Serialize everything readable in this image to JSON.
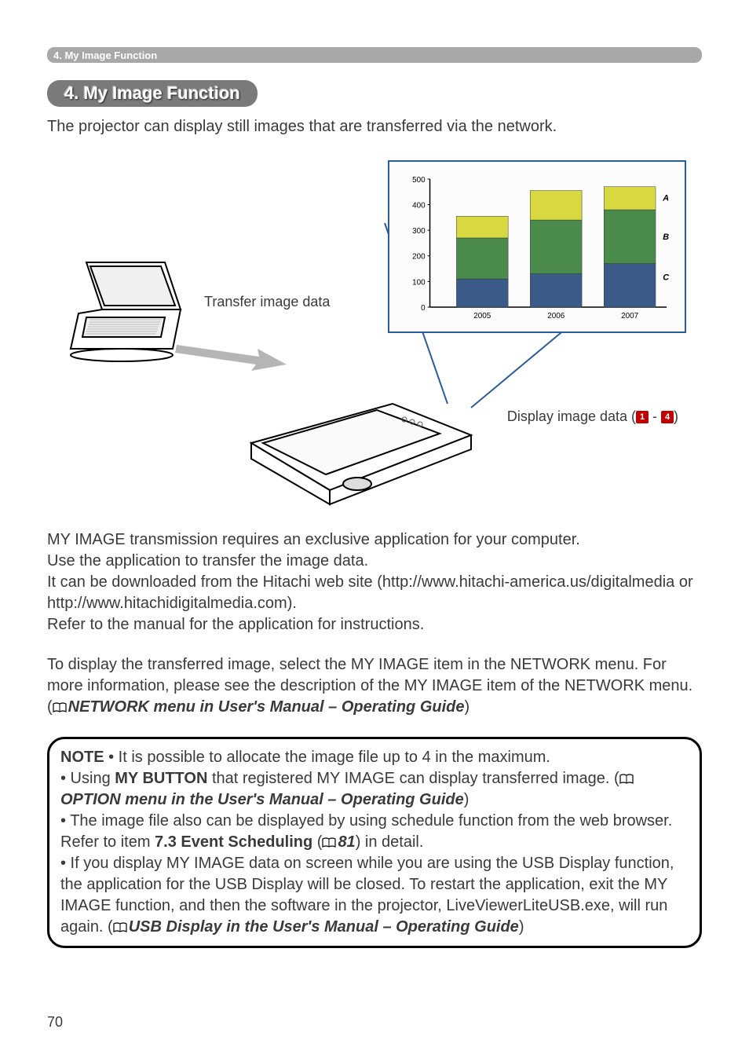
{
  "header_bar": "4. My Image Function",
  "section_title": "4. My Image Function",
  "intro": "The projector can display still images that are transferred via the network.",
  "diagram": {
    "transfer_label": "Transfer image data",
    "display_label_prefix": "Display image data (",
    "display_label_suffix": ")",
    "badge1": "1",
    "badge_sep": " - ",
    "badge2": "4",
    "chart": {
      "y_ticks": [
        "500",
        "400",
        "300",
        "200",
        "100",
        "0"
      ],
      "x_labels": [
        "2005",
        "2006",
        "2007"
      ],
      "legend": [
        "A",
        "B",
        "C"
      ],
      "series": [
        {
          "values": [
            85,
            115,
            90
          ],
          "color": "#d8d840"
        },
        {
          "values": [
            160,
            210,
            210
          ],
          "color": "#4a8a4a"
        },
        {
          "values": [
            110,
            130,
            170
          ],
          "color": "#3a5a88"
        }
      ],
      "bar_width_ratio": 0.7,
      "ymax": 500,
      "grid_color": "#888",
      "tick_fontsize": 10
    }
  },
  "para1": {
    "l1": "MY IMAGE transmission requires an exclusive application for your computer.",
    "l2": "Use the application to transfer the image data.",
    "l3": "It can be downloaded from the Hitachi web site (http://www.hitachi-america.us/digitalmedia or http://www.hitachidigitalmedia.com).",
    "l4": "Refer to the manual for the application for instructions."
  },
  "para2": {
    "t1": "To display the transferred image, select the MY IMAGE item in the NETWORK menu. For more information, please see the description of the MY IMAGE item of the NETWORK menu. (",
    "ref": "NETWORK menu in User's Manual – Operating Guide",
    "t2": ")"
  },
  "note": {
    "label": "NOTE",
    "b1": "  • It is possible to allocate the image file up to 4 in the maximum.",
    "b2a": "• Using ",
    "b2b": "MY BUTTON",
    "b2c": " that registered MY IMAGE can display transferred image. (",
    "b2ref": "OPTION menu in the User's Manual – Operating Guide",
    "b2d": ")",
    "b3a": "• The image file also can be displayed by using schedule function from the web browser. Refer to item ",
    "b3b": "7.3 Event Scheduling",
    "b3c": " (",
    "b3ref": "81",
    "b3d": ") in detail.",
    "b4a": "• If you display MY IMAGE data on screen while you are using the USB Display function, the application for the USB Display will be closed. To restart the application, exit the MY IMAGE function, and then the software in the projector, LiveViewerLiteUSB.exe, will run again. (",
    "b4ref": "USB Display in the User's Manual – Operating Guide",
    "b4b": ")"
  },
  "page_number": "70"
}
